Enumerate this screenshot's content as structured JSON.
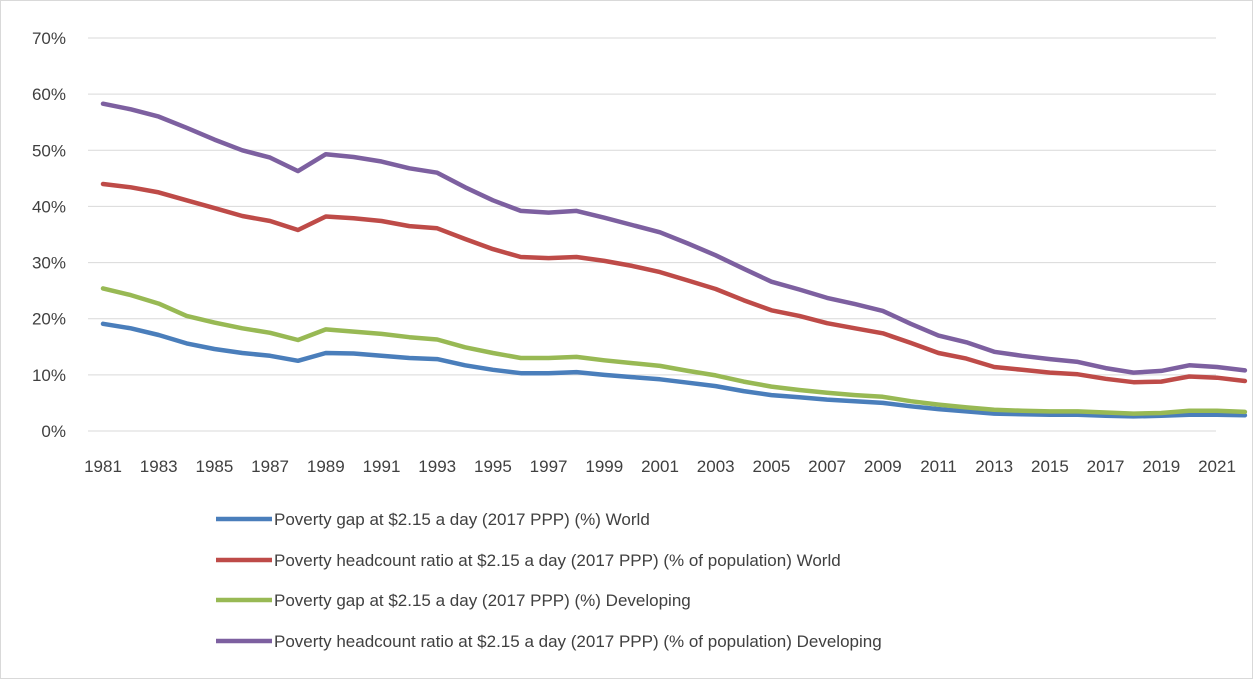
{
  "chart_data": {
    "type": "line",
    "title": "",
    "xlabel": "",
    "ylabel": "",
    "ylim": [
      0,
      70
    ],
    "y_ticks": [
      "0%",
      "10%",
      "20%",
      "30%",
      "40%",
      "50%",
      "60%",
      "70%"
    ],
    "x": [
      1981,
      1982,
      1983,
      1984,
      1985,
      1986,
      1987,
      1988,
      1989,
      1990,
      1991,
      1992,
      1993,
      1994,
      1995,
      1996,
      1997,
      1998,
      1999,
      2000,
      2001,
      2002,
      2003,
      2004,
      2005,
      2006,
      2007,
      2008,
      2009,
      2010,
      2011,
      2012,
      2013,
      2014,
      2015,
      2016,
      2017,
      2018,
      2019,
      2020,
      2021,
      2022
    ],
    "x_tick_labels": [
      "1981",
      "1983",
      "1985",
      "1987",
      "1989",
      "1991",
      "1993",
      "1995",
      "1997",
      "1999",
      "2001",
      "2003",
      "2005",
      "2007",
      "2009",
      "2011",
      "2013",
      "2015",
      "2017",
      "2019",
      "2021"
    ],
    "grid": "horizontal",
    "legend_position": "bottom",
    "series": [
      {
        "name": "Poverty gap at $2.15 a day (2017 PPP) (%) World",
        "color": "#4a7ebb",
        "values": [
          19.1,
          18.3,
          17.1,
          15.6,
          14.6,
          13.9,
          13.4,
          12.5,
          13.9,
          13.8,
          13.4,
          13.0,
          12.8,
          11.7,
          10.9,
          10.3,
          10.3,
          10.5,
          10.0,
          9.6,
          9.2,
          8.6,
          8.0,
          7.1,
          6.4,
          6.0,
          5.6,
          5.3,
          5.0,
          4.4,
          3.9,
          3.5,
          3.1,
          3.0,
          2.9,
          2.9,
          2.7,
          2.6,
          2.7,
          2.9,
          2.9,
          2.8
        ]
      },
      {
        "name": "Poverty headcount ratio at $2.15 a day (2017 PPP) (% of population) World",
        "color": "#be4b48",
        "values": [
          44.0,
          43.4,
          42.5,
          41.1,
          39.7,
          38.3,
          37.4,
          35.8,
          38.2,
          37.9,
          37.4,
          36.5,
          36.1,
          34.2,
          32.4,
          31.0,
          30.8,
          31.0,
          30.3,
          29.4,
          28.3,
          26.8,
          25.3,
          23.3,
          21.5,
          20.5,
          19.2,
          18.3,
          17.4,
          15.7,
          13.9,
          12.9,
          11.4,
          10.9,
          10.4,
          10.1,
          9.3,
          8.7,
          8.8,
          9.7,
          9.5,
          8.9
        ]
      },
      {
        "name": "Poverty gap at $2.15 a day (2017 PPP) (%) Developing",
        "color": "#98b954",
        "values": [
          25.4,
          24.2,
          22.7,
          20.5,
          19.3,
          18.3,
          17.5,
          16.2,
          18.1,
          17.7,
          17.3,
          16.7,
          16.3,
          14.9,
          13.9,
          13.0,
          13.0,
          13.2,
          12.6,
          12.1,
          11.6,
          10.7,
          9.9,
          8.8,
          7.9,
          7.3,
          6.8,
          6.4,
          6.1,
          5.3,
          4.7,
          4.2,
          3.8,
          3.6,
          3.5,
          3.5,
          3.3,
          3.1,
          3.2,
          3.6,
          3.6,
          3.4
        ]
      },
      {
        "name": "Poverty headcount ratio at $2.15 a day (2017 PPP) (% of population) Developing",
        "color": "#7d60a0",
        "values": [
          58.3,
          57.3,
          56.0,
          54.0,
          51.9,
          50.0,
          48.7,
          46.3,
          49.3,
          48.8,
          48.0,
          46.8,
          46.0,
          43.4,
          41.1,
          39.2,
          38.9,
          39.2,
          38.0,
          36.7,
          35.4,
          33.4,
          31.3,
          28.9,
          26.6,
          25.2,
          23.7,
          22.6,
          21.4,
          19.1,
          17.0,
          15.8,
          14.1,
          13.4,
          12.8,
          12.3,
          11.2,
          10.4,
          10.7,
          11.7,
          11.4,
          10.8
        ]
      }
    ]
  }
}
